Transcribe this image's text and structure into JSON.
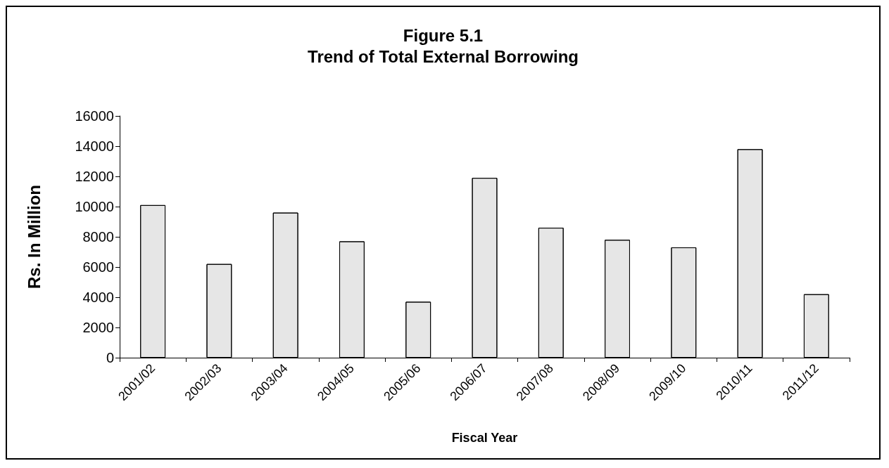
{
  "chart_data": {
    "type": "bar",
    "title": "Figure 5.1\nTrend of Total External Borrowing",
    "xlabel": "Fiscal Year",
    "ylabel": "Rs. In Million",
    "categories": [
      "2001/02",
      "2002/03",
      "2003/04",
      "2004/05",
      "2005/06",
      "2006/07",
      "2007/08",
      "2008/09",
      "2009/10",
      "2010/11",
      "2011/12"
    ],
    "values": [
      10100,
      6200,
      9600,
      7700,
      3700,
      11900,
      8600,
      7800,
      7300,
      13800,
      4200
    ],
    "color": "#e6e6e6",
    "ylim": [
      0,
      16000
    ],
    "yticks": [
      0,
      2000,
      4000,
      6000,
      8000,
      10000,
      12000,
      14000,
      16000
    ],
    "grid": false
  }
}
